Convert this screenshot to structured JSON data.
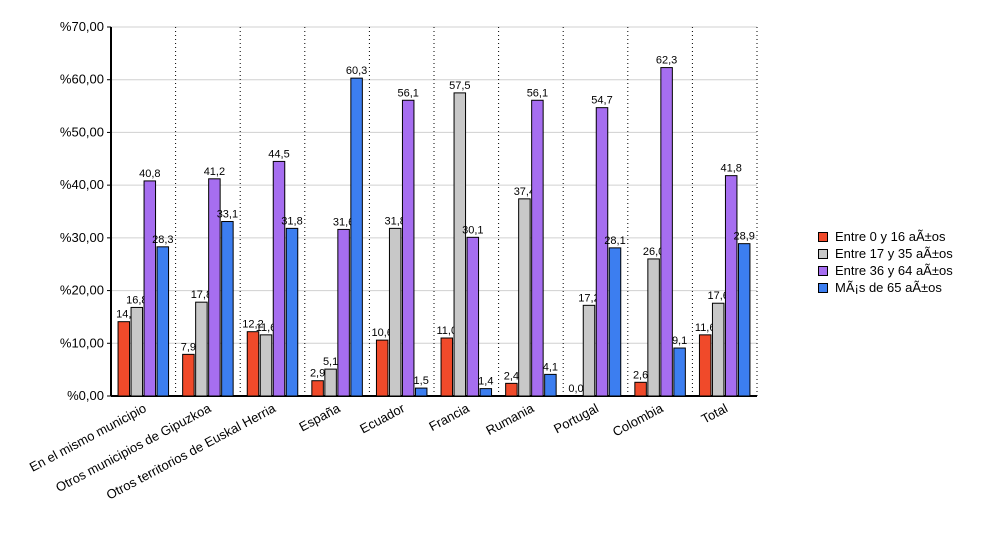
{
  "chart_data": {
    "type": "bar",
    "title": "",
    "xlabel": "",
    "ylabel": "",
    "ylim": [
      0,
      70
    ],
    "yticks": [
      "%0,00",
      "%10,00",
      "%20,00",
      "%30,00",
      "%40,00",
      "%50,00",
      "%60,00",
      "%70,00"
    ],
    "grid": true,
    "legend_position": "right",
    "categories": [
      "En el mismo municipio",
      "Otros municipios de Gipuzkoa",
      "Otros territorios de Euskal Herria",
      "España",
      "Ecuador",
      "Francia",
      "Rumania",
      "Portugal",
      "Colombia",
      "Total"
    ],
    "series": [
      {
        "name": "Entre 0 y 16 aÃ±os",
        "color": "#f04a2a",
        "values": [
          14.1,
          7.9,
          12.2,
          2.9,
          10.6,
          11.0,
          2.4,
          0.0,
          2.6,
          11.6
        ],
        "labels": [
          "14,",
          "7,9",
          "12,2",
          "2,9",
          "10,6",
          "11,0",
          "2,4",
          "0,0",
          "2,6",
          "11,6"
        ]
      },
      {
        "name": "Entre 17 y 35 aÃ±os",
        "color": "#c8c8c8",
        "values": [
          16.8,
          17.8,
          11.6,
          5.1,
          31.8,
          57.5,
          37.4,
          17.2,
          26.0,
          17.6
        ],
        "labels": [
          "16,8",
          "17,8",
          "11,6",
          "5,1",
          "31,8",
          "57,5",
          "37,4",
          "17,2",
          "26,0",
          "17,6"
        ]
      },
      {
        "name": "Entre 36 y 64 aÃ±os",
        "color": "#a66ef0",
        "values": [
          40.8,
          41.2,
          44.5,
          31.6,
          56.1,
          30.1,
          56.1,
          54.7,
          62.3,
          41.8
        ],
        "labels": [
          "40,8",
          "41,2",
          "44,5",
          "31,6",
          "56,1",
          "30,1",
          "56,1",
          "54,7",
          "62,3",
          "41,8"
        ]
      },
      {
        "name": "MÃ¡s de 65 aÃ±os",
        "color": "#3c7ef0",
        "values": [
          28.3,
          33.1,
          31.8,
          60.3,
          1.5,
          1.4,
          4.1,
          28.1,
          9.1,
          28.9
        ],
        "labels": [
          "28,3",
          "33,1",
          "31,8",
          "60,3",
          "1,5",
          "1,4",
          "4,1",
          "28,1",
          "9,1",
          "28,9"
        ]
      }
    ]
  }
}
